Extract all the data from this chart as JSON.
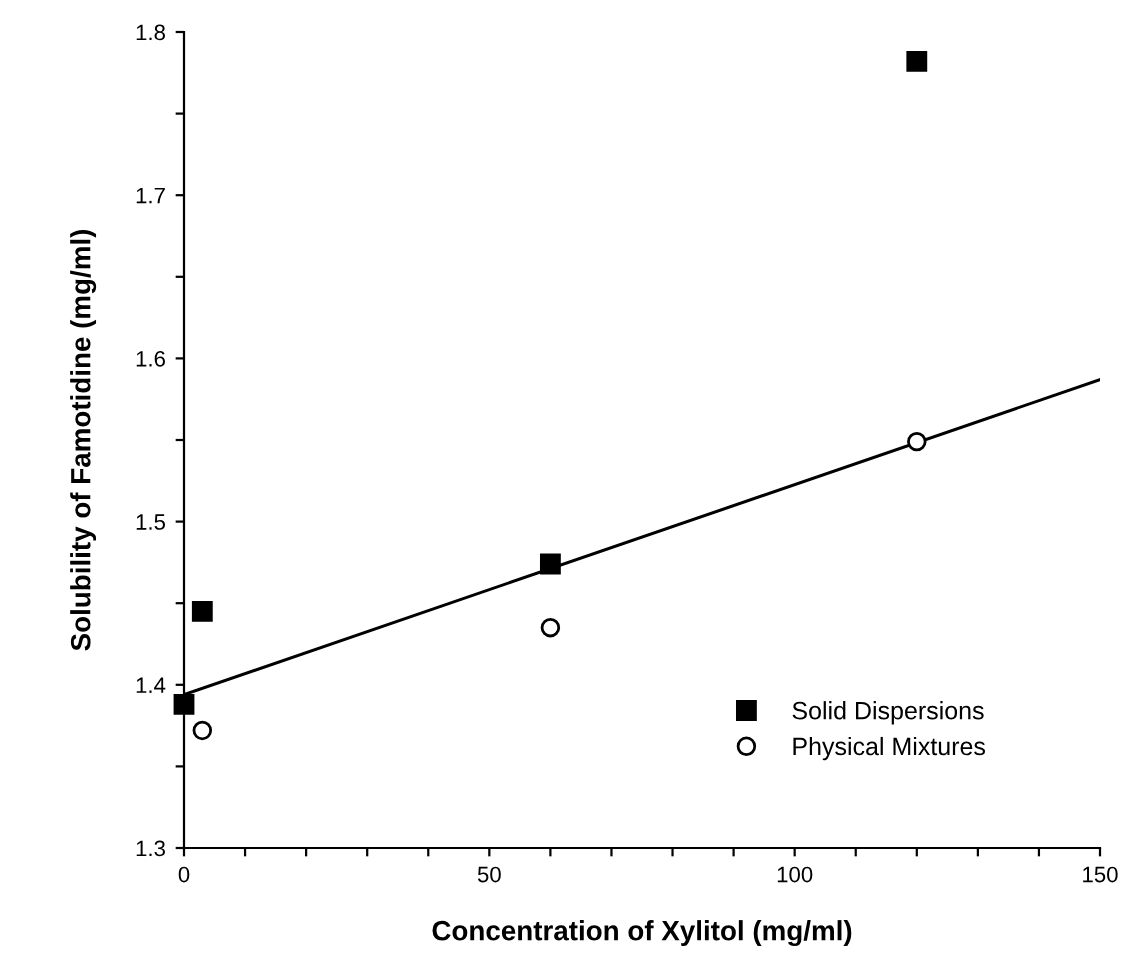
{
  "chart_data": {
    "type": "scatter",
    "xlabel": "Concentration of Xylitol (mg/ml)",
    "ylabel": "Solubility of Famotidine (mg/ml)",
    "xlim": [
      0,
      150
    ],
    "ylim": [
      1.3,
      1.8
    ],
    "xticks": [
      0,
      {
        "value": 10,
        "label": null
      },
      {
        "value": 20,
        "label": null
      },
      {
        "value": 30,
        "label": null
      },
      {
        "value": 40,
        "label": null
      },
      50,
      {
        "value": 60,
        "label": null
      },
      {
        "value": 70,
        "label": null
      },
      {
        "value": 80,
        "label": null
      },
      {
        "value": 90,
        "label": null
      },
      100,
      {
        "value": 110,
        "label": null
      },
      {
        "value": 120,
        "label": null
      },
      {
        "value": 130,
        "label": null
      },
      {
        "value": 140,
        "label": null
      },
      150
    ],
    "yticks": [
      1.3,
      {
        "value": 1.35,
        "label": null
      },
      1.4,
      {
        "value": 1.45,
        "label": null
      },
      1.5,
      {
        "value": 1.55,
        "label": null
      },
      1.6,
      {
        "value": 1.65,
        "label": null
      },
      1.7,
      {
        "value": 1.75,
        "label": null
      },
      1.8
    ],
    "grid": false,
    "legend": "bottom right",
    "series": [
      {
        "name": "Solid Dispersions",
        "color": "#000000",
        "marker": "square",
        "x": [
          0,
          3,
          60,
          120
        ],
        "values": [
          1.388,
          1.445,
          1.474,
          1.782
        ]
      },
      {
        "name": "Physical Mixtures",
        "color": "#000000",
        "marker": "circle",
        "x": [
          3,
          60,
          120
        ],
        "values": [
          1.372,
          1.435,
          1.549
        ]
      },
      {
        "type": "line",
        "color": "#000000",
        "marker": "none",
        "line_style": "solid",
        "x": [
          0,
          150
        ],
        "values": [
          1.394,
          1.587
        ]
      }
    ]
  }
}
